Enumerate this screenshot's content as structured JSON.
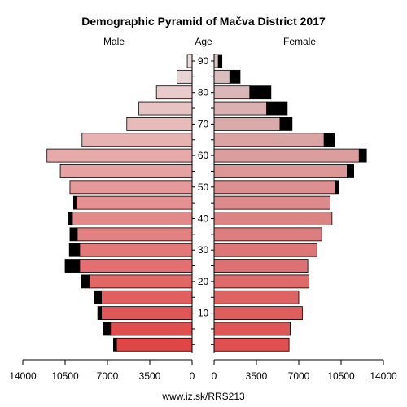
{
  "chart_data": {
    "type": "bar",
    "title": "Demographic Pyramid of Mačva District 2017",
    "left_label": "Male",
    "center_label": "Age",
    "right_label": "Female",
    "footer": "www.iz.sk/RRS213",
    "age_ticks": [
      "10",
      "20",
      "30",
      "40",
      "50",
      "60",
      "70",
      "80",
      "90"
    ],
    "x_ticks_male": [
      "14000",
      "10500",
      "7000",
      "3500",
      "0"
    ],
    "x_ticks_female": [
      "0",
      "3500",
      "7000",
      "10500",
      "14000"
    ],
    "xlim": [
      0,
      14000
    ],
    "age_groups": [
      "0-4",
      "5-9",
      "10-14",
      "15-19",
      "20-24",
      "25-29",
      "30-34",
      "35-39",
      "40-44",
      "45-49",
      "50-54",
      "55-59",
      "60-64",
      "65-69",
      "70-74",
      "75-79",
      "80-84",
      "85-89",
      "90+"
    ],
    "series": [
      {
        "name": "Male",
        "values": [
          6250,
          6750,
          7500,
          7500,
          8500,
          9300,
          9300,
          9500,
          9900,
          9600,
          10100,
          10900,
          12000,
          9100,
          5400,
          4400,
          2950,
          1250,
          400
        ]
      },
      {
        "name": "Male excess",
        "values": [
          250,
          600,
          300,
          550,
          650,
          1200,
          850,
          600,
          300,
          200,
          0,
          0,
          0,
          0,
          0,
          0,
          0,
          0,
          0
        ]
      },
      {
        "name": "Female",
        "values": [
          6200,
          6300,
          7300,
          7000,
          7850,
          7750,
          8500,
          8900,
          9750,
          9600,
          10050,
          11000,
          12000,
          9100,
          5450,
          4350,
          2950,
          1300,
          350
        ]
      },
      {
        "name": "Female excess",
        "values": [
          0,
          0,
          0,
          0,
          0,
          0,
          0,
          0,
          0,
          0,
          250,
          550,
          600,
          900,
          1000,
          1700,
          1750,
          850,
          300
        ]
      }
    ]
  }
}
